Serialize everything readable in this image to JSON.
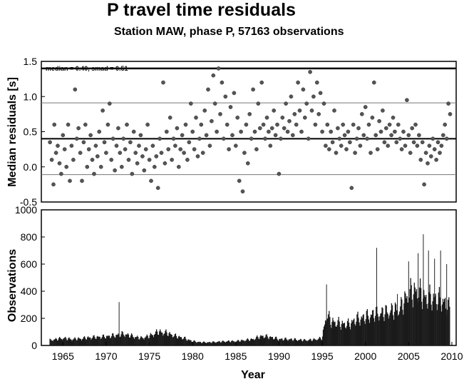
{
  "title": "P travel time residuals",
  "subtitle": "Station MAW, phase P, 57163 observations",
  "chart_data": [
    {
      "type": "scatter",
      "ylabel": "Median residuals [s]",
      "xlim": [
        1962.5,
        2010.5
      ],
      "ylim": [
        -0.5,
        1.5
      ],
      "yticks": [
        "-0.5",
        "0.0",
        "0.5",
        "1.0",
        "1.5"
      ],
      "annotation": "median = 0.40, smad = 0.51",
      "median": 0.4,
      "upper_line": 1.4,
      "bands": [
        0.91,
        -0.11
      ],
      "grid": false,
      "points": [
        [
          1963.5,
          0.35
        ],
        [
          1963.7,
          0.1
        ],
        [
          1963.9,
          -0.25
        ],
        [
          1964.0,
          0.6
        ],
        [
          1964.2,
          0.2
        ],
        [
          1964.4,
          0.3
        ],
        [
          1964.6,
          0.05
        ],
        [
          1964.8,
          -0.1
        ],
        [
          1965.0,
          0.45
        ],
        [
          1965.2,
          0.25
        ],
        [
          1965.4,
          0.0
        ],
        [
          1965.6,
          0.6
        ],
        [
          1965.8,
          -0.2
        ],
        [
          1966.0,
          0.3
        ],
        [
          1966.2,
          0.1
        ],
        [
          1966.4,
          1.1
        ],
        [
          1966.6,
          0.4
        ],
        [
          1966.8,
          0.55
        ],
        [
          1967.0,
          0.2
        ],
        [
          1967.2,
          -0.2
        ],
        [
          1967.4,
          0.35
        ],
        [
          1967.6,
          0.6
        ],
        [
          1967.8,
          0.0
        ],
        [
          1968.0,
          0.25
        ],
        [
          1968.2,
          0.45
        ],
        [
          1968.4,
          0.1
        ],
        [
          1968.6,
          -0.1
        ],
        [
          1968.8,
          0.3
        ],
        [
          1969.0,
          0.15
        ],
        [
          1969.2,
          0.5
        ],
        [
          1969.4,
          0.0
        ],
        [
          1969.6,
          0.8
        ],
        [
          1969.8,
          0.35
        ],
        [
          1970.0,
          0.2
        ],
        [
          1970.2,
          0.6
        ],
        [
          1970.4,
          0.9
        ],
        [
          1970.6,
          0.1
        ],
        [
          1970.8,
          0.4
        ],
        [
          1971.0,
          -0.05
        ],
        [
          1971.2,
          0.3
        ],
        [
          1971.4,
          0.55
        ],
        [
          1971.6,
          0.2
        ],
        [
          1971.8,
          0.0
        ],
        [
          1972.0,
          0.4
        ],
        [
          1972.2,
          0.25
        ],
        [
          1972.4,
          0.6
        ],
        [
          1972.6,
          0.1
        ],
        [
          1972.8,
          0.35
        ],
        [
          1973.0,
          -0.1
        ],
        [
          1973.2,
          0.5
        ],
        [
          1973.4,
          0.2
        ],
        [
          1973.6,
          0.05
        ],
        [
          1973.8,
          0.3
        ],
        [
          1974.0,
          0.45
        ],
        [
          1974.2,
          0.15
        ],
        [
          1974.4,
          -0.05
        ],
        [
          1974.6,
          0.25
        ],
        [
          1974.8,
          0.6
        ],
        [
          1975.0,
          0.1
        ],
        [
          1975.2,
          -0.2
        ],
        [
          1975.4,
          0.3
        ],
        [
          1975.6,
          0.0
        ],
        [
          1975.8,
          0.15
        ],
        [
          1976.0,
          -0.3
        ],
        [
          1976.2,
          0.4
        ],
        [
          1976.4,
          0.2
        ],
        [
          1976.6,
          1.2
        ],
        [
          1976.8,
          0.05
        ],
        [
          1977.0,
          0.5
        ],
        [
          1977.2,
          0.25
        ],
        [
          1977.4,
          0.7
        ],
        [
          1977.6,
          0.1
        ],
        [
          1977.8,
          0.4
        ],
        [
          1978.0,
          0.3
        ],
        [
          1978.2,
          0.55
        ],
        [
          1978.4,
          0.0
        ],
        [
          1978.6,
          0.25
        ],
        [
          1978.8,
          0.45
        ],
        [
          1979.0,
          0.2
        ],
        [
          1979.2,
          0.6
        ],
        [
          1979.4,
          0.1
        ],
        [
          1979.6,
          0.35
        ],
        [
          1979.8,
          0.9
        ],
        [
          1980.0,
          0.5
        ],
        [
          1980.2,
          0.25
        ],
        [
          1980.4,
          0.7
        ],
        [
          1980.6,
          0.15
        ],
        [
          1980.8,
          0.4
        ],
        [
          1981.0,
          0.6
        ],
        [
          1981.2,
          0.2
        ],
        [
          1981.4,
          0.8
        ],
        [
          1981.6,
          0.45
        ],
        [
          1981.8,
          1.1
        ],
        [
          1982.0,
          0.3
        ],
        [
          1982.2,
          0.65
        ],
        [
          1982.4,
          1.3
        ],
        [
          1982.6,
          0.9
        ],
        [
          1982.8,
          0.5
        ],
        [
          1983.0,
          1.4
        ],
        [
          1983.2,
          0.75
        ],
        [
          1983.4,
          1.2
        ],
        [
          1983.6,
          0.4
        ],
        [
          1983.8,
          1.0
        ],
        [
          1984.0,
          0.6
        ],
        [
          1984.2,
          0.25
        ],
        [
          1984.4,
          0.85
        ],
        [
          1984.6,
          0.45
        ],
        [
          1984.8,
          1.05
        ],
        [
          1985.0,
          0.3
        ],
        [
          1985.2,
          0.7
        ],
        [
          1985.4,
          -0.2
        ],
        [
          1985.6,
          0.5
        ],
        [
          1985.8,
          -0.35
        ],
        [
          1986.0,
          0.2
        ],
        [
          1986.2,
          0.6
        ],
        [
          1986.4,
          0.05
        ],
        [
          1986.6,
          0.75
        ],
        [
          1986.8,
          0.4
        ],
        [
          1987.0,
          1.1
        ],
        [
          1987.2,
          0.5
        ],
        [
          1987.4,
          0.25
        ],
        [
          1987.6,
          0.9
        ],
        [
          1987.8,
          0.55
        ],
        [
          1988.0,
          1.2
        ],
        [
          1988.2,
          0.6
        ],
        [
          1988.4,
          0.4
        ],
        [
          1988.6,
          0.7
        ],
        [
          1988.8,
          0.5
        ],
        [
          1989.0,
          0.3
        ],
        [
          1989.2,
          0.55
        ],
        [
          1989.4,
          0.8
        ],
        [
          1989.6,
          0.45
        ],
        [
          1989.8,
          0.6
        ],
        [
          1990.0,
          -0.1
        ],
        [
          1990.2,
          0.4
        ],
        [
          1990.4,
          0.7
        ],
        [
          1990.6,
          0.55
        ],
        [
          1990.8,
          0.9
        ],
        [
          1991.0,
          0.5
        ],
        [
          1991.2,
          0.65
        ],
        [
          1991.4,
          1.0
        ],
        [
          1991.6,
          0.45
        ],
        [
          1991.8,
          0.75
        ],
        [
          1992.0,
          0.6
        ],
        [
          1992.2,
          1.2
        ],
        [
          1992.4,
          0.8
        ],
        [
          1992.6,
          0.5
        ],
        [
          1992.8,
          1.1
        ],
        [
          1993.0,
          0.7
        ],
        [
          1993.2,
          0.9
        ],
        [
          1993.4,
          0.4
        ],
        [
          1993.6,
          1.35
        ],
        [
          1993.8,
          0.8
        ],
        [
          1994.0,
          1.0
        ],
        [
          1994.2,
          0.6
        ],
        [
          1994.4,
          1.2
        ],
        [
          1994.6,
          0.75
        ],
        [
          1994.8,
          1.05
        ],
        [
          1995.0,
          0.5
        ],
        [
          1995.2,
          0.9
        ],
        [
          1995.4,
          0.3
        ],
        [
          1995.6,
          0.6
        ],
        [
          1995.8,
          0.25
        ],
        [
          1996.0,
          0.5
        ],
        [
          1996.2,
          0.35
        ],
        [
          1996.4,
          0.8
        ],
        [
          1996.6,
          0.2
        ],
        [
          1996.8,
          0.55
        ],
        [
          1997.0,
          0.4
        ],
        [
          1997.2,
          0.3
        ],
        [
          1997.4,
          0.6
        ],
        [
          1997.6,
          0.45
        ],
        [
          1997.8,
          0.25
        ],
        [
          1998.0,
          0.5
        ],
        [
          1998.2,
          0.35
        ],
        [
          1998.4,
          -0.3
        ],
        [
          1998.6,
          0.6
        ],
        [
          1998.8,
          0.2
        ],
        [
          1999.0,
          0.4
        ],
        [
          1999.2,
          0.55
        ],
        [
          1999.4,
          0.3
        ],
        [
          1999.6,
          0.75
        ],
        [
          1999.8,
          0.45
        ],
        [
          2000.0,
          0.85
        ],
        [
          2000.2,
          0.4
        ],
        [
          2000.4,
          0.6
        ],
        [
          2000.6,
          0.2
        ],
        [
          2000.8,
          0.7
        ],
        [
          2001.0,
          1.2
        ],
        [
          2001.2,
          0.45
        ],
        [
          2001.4,
          0.25
        ],
        [
          2001.6,
          0.65
        ],
        [
          2001.8,
          0.5
        ],
        [
          2002.0,
          0.8
        ],
        [
          2002.2,
          0.35
        ],
        [
          2002.4,
          0.55
        ],
        [
          2002.6,
          0.3
        ],
        [
          2002.8,
          0.6
        ],
        [
          2003.0,
          0.45
        ],
        [
          2003.2,
          0.7
        ],
        [
          2003.4,
          0.5
        ],
        [
          2003.6,
          0.35
        ],
        [
          2003.8,
          0.6
        ],
        [
          2004.0,
          0.4
        ],
        [
          2004.2,
          0.25
        ],
        [
          2004.4,
          0.5
        ],
        [
          2004.6,
          0.3
        ],
        [
          2004.8,
          0.95
        ],
        [
          2005.0,
          0.45
        ],
        [
          2005.2,
          0.2
        ],
        [
          2005.4,
          0.55
        ],
        [
          2005.6,
          0.35
        ],
        [
          2005.8,
          0.6
        ],
        [
          2006.0,
          0.3
        ],
        [
          2006.2,
          0.45
        ],
        [
          2006.4,
          0.1
        ],
        [
          2006.6,
          0.35
        ],
        [
          2006.8,
          -0.25
        ],
        [
          2007.0,
          0.2
        ],
        [
          2007.2,
          0.05
        ],
        [
          2007.4,
          0.3
        ],
        [
          2007.6,
          0.15
        ],
        [
          2007.8,
          0.4
        ],
        [
          2008.0,
          0.25
        ],
        [
          2008.2,
          0.1
        ],
        [
          2008.4,
          0.35
        ],
        [
          2008.6,
          0.2
        ],
        [
          2008.8,
          0.3
        ],
        [
          2009.0,
          0.45
        ],
        [
          2009.2,
          0.6
        ],
        [
          2009.4,
          0.4
        ],
        [
          2009.6,
          0.9
        ],
        [
          2009.8,
          0.75
        ]
      ]
    },
    {
      "type": "bar",
      "xlabel": "Year",
      "ylabel": "Observations",
      "xlim": [
        1962.5,
        2010.5
      ],
      "ylim": [
        0,
        1000
      ],
      "xticks": [
        "1965",
        "1970",
        "1975",
        "1980",
        "1985",
        "1990",
        "1995",
        "2000",
        "2005",
        "2010"
      ],
      "yticks": [
        "0",
        "200",
        "400",
        "600",
        "800",
        "1000"
      ],
      "grid": false,
      "spikes": [
        [
          1971.5,
          320
        ],
        [
          1995.5,
          450
        ],
        [
          2001.3,
          720
        ],
        [
          2003.7,
          380
        ],
        [
          2005.0,
          620
        ],
        [
          2006.1,
          680
        ],
        [
          2006.7,
          820
        ],
        [
          2007.3,
          700
        ],
        [
          2008.0,
          640
        ],
        [
          2008.7,
          700
        ],
        [
          2009.4,
          600
        ]
      ],
      "envelope": [
        [
          1963.5,
          50
        ],
        [
          1965,
          70
        ],
        [
          1966,
          60
        ],
        [
          1967,
          65
        ],
        [
          1968,
          75
        ],
        [
          1969,
          80
        ],
        [
          1970,
          85
        ],
        [
          1971,
          95
        ],
        [
          1972,
          110
        ],
        [
          1973,
          90
        ],
        [
          1974,
          70
        ],
        [
          1975,
          90
        ],
        [
          1976,
          130
        ],
        [
          1977,
          120
        ],
        [
          1978,
          90
        ],
        [
          1979,
          70
        ],
        [
          1980,
          40
        ],
        [
          1981,
          30
        ],
        [
          1982,
          30
        ],
        [
          1983,
          35
        ],
        [
          1984,
          40
        ],
        [
          1985,
          40
        ],
        [
          1986,
          50
        ],
        [
          1987,
          60
        ],
        [
          1988,
          90
        ],
        [
          1989,
          80
        ],
        [
          1990,
          60
        ],
        [
          1991,
          60
        ],
        [
          1992,
          55
        ],
        [
          1993,
          50
        ],
        [
          1994,
          55
        ],
        [
          1995,
          70
        ],
        [
          1995.5,
          300
        ],
        [
          1996,
          230
        ],
        [
          1997,
          210
        ],
        [
          1998,
          200
        ],
        [
          1999,
          250
        ],
        [
          2000,
          270
        ],
        [
          2001,
          300
        ],
        [
          2002,
          310
        ],
        [
          2003,
          330
        ],
        [
          2004,
          350
        ],
        [
          2005,
          500
        ],
        [
          2006,
          520
        ],
        [
          2007,
          450
        ],
        [
          2008,
          450
        ],
        [
          2009,
          420
        ],
        [
          2009.8,
          350
        ]
      ]
    }
  ]
}
